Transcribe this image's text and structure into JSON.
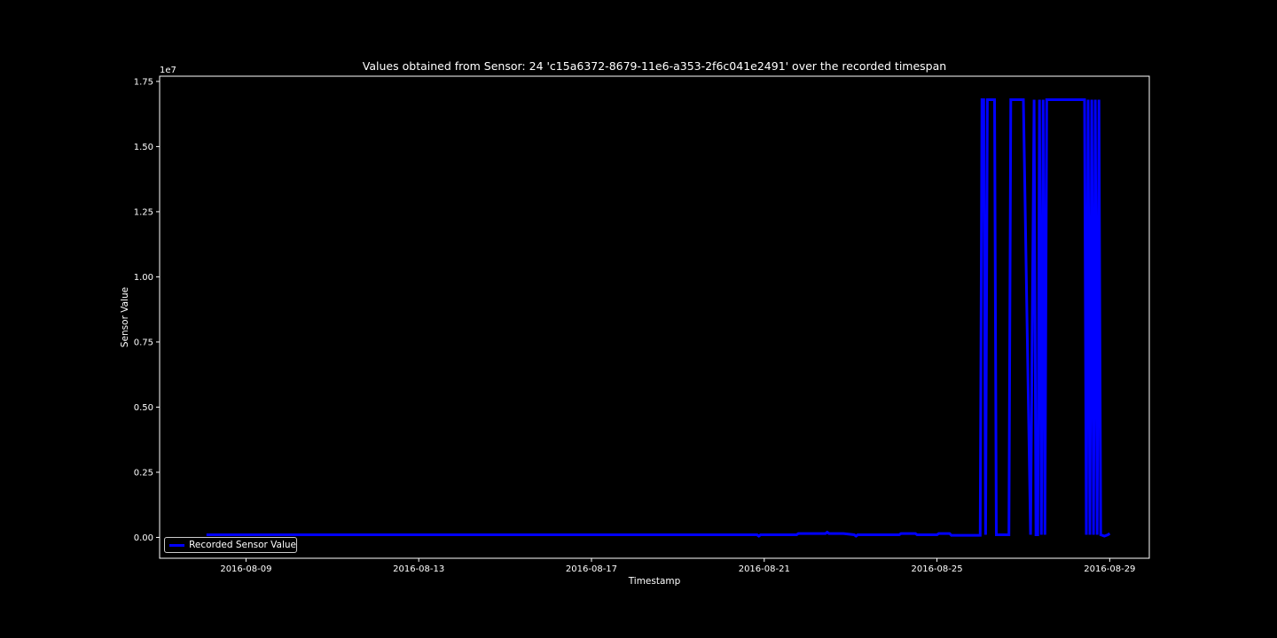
{
  "chart_data": {
    "type": "line",
    "title": "Values obtained from Sensor: 24 'c15a6372-8679-11e6-a353-2f6c041e2491' over the recorded timespan",
    "xlabel": "Timestamp",
    "ylabel": "Sensor Value",
    "y_offset_label": "1e7",
    "x_ticks": [
      "2016-08-09",
      "2016-08-13",
      "2016-08-17",
      "2016-08-21",
      "2016-08-25",
      "2016-08-29"
    ],
    "y_ticks": [
      "0.00",
      "0.25",
      "0.50",
      "0.75",
      "1.00",
      "1.25",
      "1.50",
      "1.75"
    ],
    "xlim": [
      "2016-08-07T00:00",
      "2016-08-29T22:00"
    ],
    "ylim": [
      -800000,
      17700000
    ],
    "grid": false,
    "legend_position": "lower left",
    "background": "#000000",
    "series": [
      {
        "name": "Recorded Sensor Value",
        "color": "#0000ff",
        "x": [
          "2016-08-08T02:00",
          "2016-08-20T20:00",
          "2016-08-20T21:00",
          "2016-08-20T22:00",
          "2016-08-21T18:00",
          "2016-08-21T19:00",
          "2016-08-22T10:00",
          "2016-08-22T11:00",
          "2016-08-22T12:00",
          "2016-08-22T20:00",
          "2016-08-23T02:00",
          "2016-08-23T03:00",
          "2016-08-23T04:00",
          "2016-08-23T05:00",
          "2016-08-24T03:00",
          "2016-08-24T04:00",
          "2016-08-24T12:00",
          "2016-08-24T13:00",
          "2016-08-25T00:00",
          "2016-08-25T01:00",
          "2016-08-25T07:00",
          "2016-08-25T08:00",
          "2016-08-25T12:00",
          "2016-08-26T00:00",
          "2016-08-26T01:00",
          "2016-08-26T02:00",
          "2016-08-26T03:00",
          "2016-08-26T04:00",
          "2016-08-26T05:00",
          "2016-08-26T06:00",
          "2016-08-26T07:00",
          "2016-08-26T08:00",
          "2016-08-26T09:00",
          "2016-08-26T10:00",
          "2016-08-26T11:00",
          "2016-08-26T12:00",
          "2016-08-26T15:00",
          "2016-08-26T16:00",
          "2016-08-26T17:00",
          "2016-08-27T00:00",
          "2016-08-27T04:00",
          "2016-08-27T06:00",
          "2016-08-27T07:00",
          "2016-08-27T08:00",
          "2016-08-27T09:00",
          "2016-08-27T10:00",
          "2016-08-27T11:00",
          "2016-08-27T12:00",
          "2016-08-27T13:00",
          "2016-08-27T14:00",
          "2016-08-27T15:00",
          "2016-08-27T16:00",
          "2016-08-27T17:00",
          "2016-08-27T18:00",
          "2016-08-28T10:00",
          "2016-08-28T11:00",
          "2016-08-28T12:00",
          "2016-08-28T13:00",
          "2016-08-28T14:00",
          "2016-08-28T15:00",
          "2016-08-28T16:00",
          "2016-08-28T17:00",
          "2016-08-28T18:00",
          "2016-08-28T19:00",
          "2016-08-28T21:00",
          "2016-08-28T23:00",
          "2016-08-29T00:00"
        ],
        "y": [
          100000,
          100000,
          50000,
          100000,
          100000,
          150000,
          150000,
          200000,
          150000,
          150000,
          100000,
          50000,
          100000,
          100000,
          100000,
          150000,
          150000,
          100000,
          100000,
          150000,
          150000,
          80000,
          80000,
          80000,
          16800000,
          16800000,
          100000,
          16800000,
          16800000,
          16800000,
          16800000,
          16800000,
          100000,
          100000,
          100000,
          100000,
          100000,
          100000,
          16800000,
          16800000,
          100000,
          16800000,
          100000,
          100000,
          16800000,
          100000,
          16800000,
          100000,
          16800000,
          16800000,
          16800000,
          16800000,
          16800000,
          16800000,
          16800000,
          100000,
          16800000,
          100000,
          16800000,
          100000,
          16800000,
          100000,
          16800000,
          100000,
          50000,
          100000,
          150000
        ]
      }
    ]
  }
}
